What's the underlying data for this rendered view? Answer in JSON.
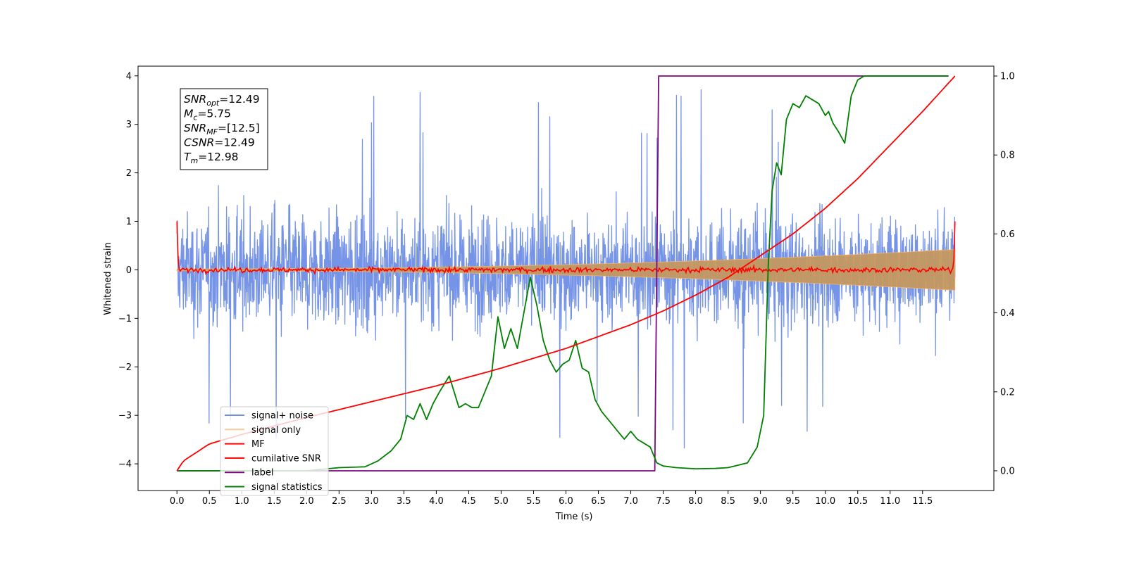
{
  "chart_data": {
    "type": "line",
    "title": "",
    "xlabel": "Time (s)",
    "ylabel": "Whitened strain",
    "y2label": "",
    "xlim": [
      -0.6,
      12.6
    ],
    "ylim": [
      -4.55,
      4.2
    ],
    "y2lim": [
      -0.05,
      1.025
    ],
    "x_ticks": [
      "0.0",
      "0.5",
      "1.0",
      "1.5",
      "2.0",
      "2.5",
      "3.0",
      "3.5",
      "4.0",
      "4.5",
      "5.0",
      "5.5",
      "6.0",
      "6.5",
      "7.0",
      "7.5",
      "8.0",
      "8.5",
      "9.0",
      "9.5",
      "10.0",
      "10.5",
      "11.0",
      "11.5"
    ],
    "y_ticks": [
      "4",
      "3",
      "2",
      "1",
      "0",
      "−1",
      "−2",
      "−3",
      "−4"
    ],
    "y2_ticks": [
      "1.0",
      "0.8",
      "0.6",
      "0.4",
      "0.2",
      "0.0"
    ],
    "grid": false,
    "legend_position": "lower-left",
    "annotation": {
      "lines": [
        {
          "base": "SNR",
          "sub": "opt",
          "rest": "=12.49"
        },
        {
          "base": "M",
          "sub": "c",
          "rest": "=5.75"
        },
        {
          "base": "SNR",
          "sub": "MF",
          "rest": "=[12.5]"
        },
        {
          "base": "CSNR",
          "sub": "",
          "rest": "=12.49"
        },
        {
          "base": "T",
          "sub": "m",
          "rest": "=12.98"
        }
      ]
    },
    "series": [
      {
        "name": "signal+ noise",
        "color": "#6f8ee6",
        "axis": "left",
        "style": "noise band, amplitude about ±1.3 with spikes to ±3.8",
        "x_range": [
          0.0,
          12.0
        ]
      },
      {
        "name": "signal only",
        "color": "#f5b466",
        "axis": "left",
        "style": "chirp envelope growing from ±0.02 to ±0.42",
        "x_range": [
          0.0,
          12.0
        ]
      },
      {
        "name": "MF",
        "color": "#ff0000",
        "axis": "left",
        "style": "noisy line near 0, ±0.1, with 1.0 at both ends",
        "x_range": [
          0.0,
          12.0
        ]
      },
      {
        "name": "cumilative SNR",
        "color": "#ff0000",
        "axis": "right",
        "x": [
          0.0,
          0.1,
          0.5,
          1.0,
          2.0,
          3.0,
          4.0,
          5.0,
          6.0,
          6.5,
          7.0,
          7.5,
          8.0,
          8.5,
          9.0,
          9.5,
          10.0,
          10.5,
          11.0,
          11.5,
          12.0
        ],
        "y": [
          0.0,
          0.025,
          0.068,
          0.092,
          0.135,
          0.175,
          0.215,
          0.26,
          0.31,
          0.34,
          0.37,
          0.405,
          0.445,
          0.49,
          0.545,
          0.6,
          0.665,
          0.74,
          0.825,
          0.91,
          1.0
        ]
      },
      {
        "name": "label",
        "color": "#7b0a7e",
        "axis": "right",
        "x": [
          0.0,
          7.37,
          7.43,
          11.9
        ],
        "y": [
          0.0,
          0.0,
          1.0,
          1.0
        ]
      },
      {
        "name": "signal statistics",
        "color": "#008000",
        "axis": "right",
        "x": [
          0.0,
          0.5,
          1.0,
          1.5,
          2.0,
          2.5,
          2.9,
          3.1,
          3.3,
          3.45,
          3.55,
          3.65,
          3.75,
          3.85,
          3.95,
          4.05,
          4.2,
          4.35,
          4.45,
          4.55,
          4.65,
          4.75,
          4.85,
          4.95,
          5.05,
          5.15,
          5.25,
          5.35,
          5.45,
          5.55,
          5.65,
          5.75,
          5.85,
          5.95,
          6.05,
          6.15,
          6.25,
          6.35,
          6.45,
          6.55,
          6.7,
          6.8,
          6.9,
          7.0,
          7.1,
          7.2,
          7.3,
          7.4,
          7.5,
          7.7,
          8.0,
          8.3,
          8.5,
          8.8,
          8.95,
          9.05,
          9.12,
          9.18,
          9.25,
          9.32,
          9.4,
          9.5,
          9.6,
          9.7,
          9.8,
          9.9,
          10.0,
          10.05,
          10.12,
          10.2,
          10.3,
          10.4,
          10.5,
          10.6,
          10.8,
          11.0,
          11.2,
          11.4,
          11.6,
          11.8,
          11.9
        ],
        "y": [
          0.0,
          0.0,
          0.0,
          0.0,
          0.0,
          0.008,
          0.01,
          0.025,
          0.05,
          0.08,
          0.14,
          0.13,
          0.17,
          0.13,
          0.17,
          0.2,
          0.24,
          0.16,
          0.17,
          0.16,
          0.16,
          0.2,
          0.24,
          0.39,
          0.31,
          0.36,
          0.31,
          0.4,
          0.49,
          0.42,
          0.33,
          0.28,
          0.25,
          0.27,
          0.28,
          0.33,
          0.26,
          0.25,
          0.18,
          0.15,
          0.12,
          0.1,
          0.08,
          0.1,
          0.08,
          0.07,
          0.06,
          0.02,
          0.012,
          0.008,
          0.005,
          0.006,
          0.008,
          0.02,
          0.06,
          0.14,
          0.52,
          0.71,
          0.78,
          0.75,
          0.89,
          0.93,
          0.92,
          0.95,
          0.94,
          0.93,
          0.9,
          0.91,
          0.88,
          0.86,
          0.83,
          0.95,
          0.99,
          1.0,
          1.0,
          1.0,
          1.0,
          1.0,
          1.0,
          1.0,
          1.0
        ]
      }
    ]
  }
}
